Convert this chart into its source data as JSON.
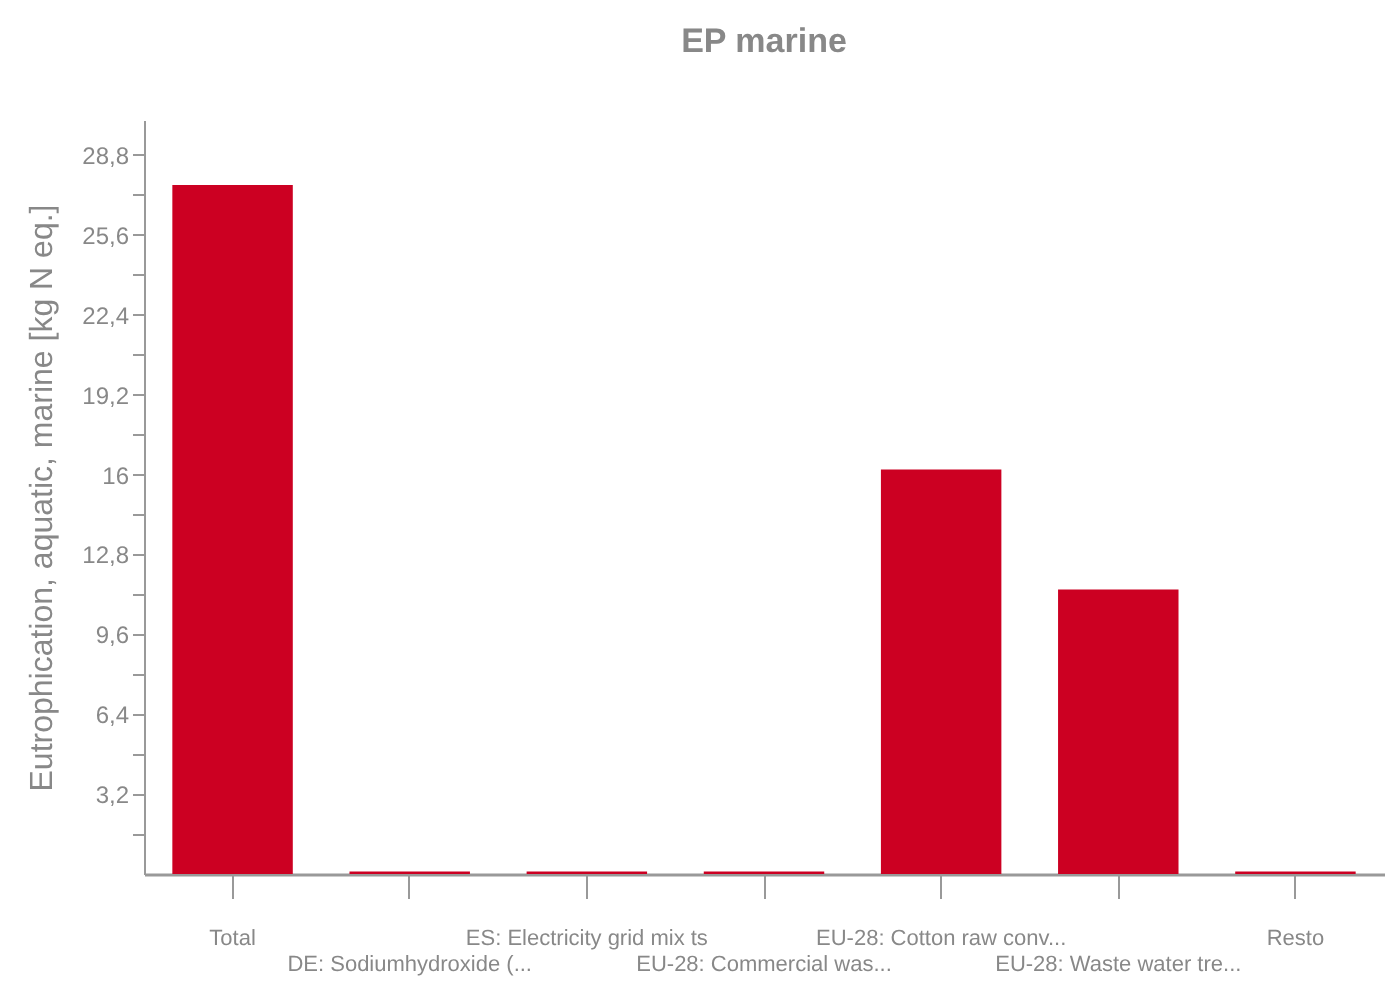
{
  "chart_data": {
    "type": "bar",
    "title": "EP marine",
    "ylabel": "Eutrophication, aquatic, marine [kg N eq.]",
    "categories": [
      "Total",
      "DE: Sodiumhydroxide (...",
      "ES: Electricity grid mix ts",
      "EU-28: Commercial was...",
      "EU-28: Cotton raw conv...",
      "EU-28: Waste water tre...",
      "Resto"
    ],
    "values": [
      27.6,
      0.1,
      0.1,
      0.1,
      16.2,
      11.4,
      0.1
    ],
    "color": "#cc0022",
    "ylim": [
      0,
      30.2
    ],
    "yticks": [
      {
        "value": 1.6,
        "label": null
      },
      {
        "value": 3.2,
        "label": "3,2"
      },
      {
        "value": 4.8,
        "label": null
      },
      {
        "value": 6.4,
        "label": "6,4"
      },
      {
        "value": 8,
        "label": null
      },
      {
        "value": 9.6,
        "label": "9,6"
      },
      {
        "value": 11.2,
        "label": null
      },
      {
        "value": 12.8,
        "label": "12,8"
      },
      {
        "value": 14.4,
        "label": null
      },
      16,
      {
        "value": 17.6,
        "label": null
      },
      {
        "value": 19.2,
        "label": "19,2"
      },
      {
        "value": 20.8,
        "label": null
      },
      {
        "value": 22.4,
        "label": "22,4"
      },
      {
        "value": 24,
        "label": null
      },
      {
        "value": 25.6,
        "label": "25,6"
      },
      {
        "value": 27.2,
        "label": null
      },
      {
        "value": 28.8,
        "label": "28,8"
      }
    ],
    "grid": false
  }
}
